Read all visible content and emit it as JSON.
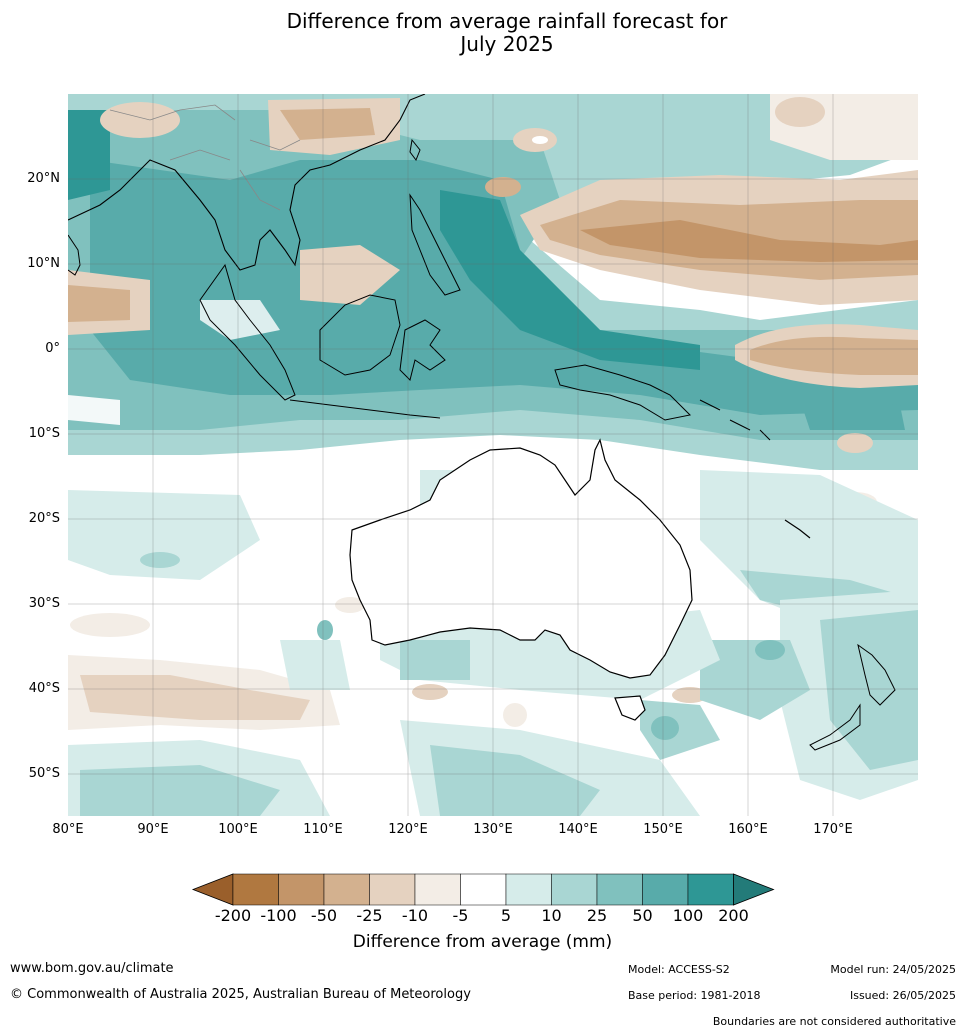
{
  "title_line1": "Difference from average rainfall forecast for",
  "title_line2": "July 2025",
  "lat_labels": [
    "20°N",
    "10°N",
    "0°",
    "10°S",
    "20°S",
    "30°S",
    "40°S",
    "50°S"
  ],
  "lon_labels": [
    "80°E",
    "90°E",
    "100°E",
    "110°E",
    "120°E",
    "130°E",
    "140°E",
    "150°E",
    "160°E",
    "170°E"
  ],
  "colorbar": {
    "labels": [
      "-200",
      "-100",
      "-50",
      "-25",
      "-10",
      "-5",
      "5",
      "10",
      "25",
      "50",
      "100",
      "200"
    ],
    "colors": [
      "#9a5f2b",
      "#b07840",
      "#c39569",
      "#d3b18f",
      "#e5d2c0",
      "#f3ede6",
      "#ffffff",
      "#d6ecea",
      "#a9d6d3",
      "#80c1be",
      "#58abaa",
      "#2e9795",
      "#237b79"
    ],
    "title": "Difference from average (mm)"
  },
  "footer": {
    "url": "www.bom.gov.au/climate",
    "copyright": "© Commonwealth of Australia 2025, Australian Bureau of Meteorology",
    "model": "Model: ACCESS-S2",
    "base_period": "Base period: 1981-2018",
    "model_run": "Model run: 24/05/2025",
    "issued": "Issued: 26/05/2025",
    "disclaimer": "Boundaries are not considered authoritative"
  }
}
